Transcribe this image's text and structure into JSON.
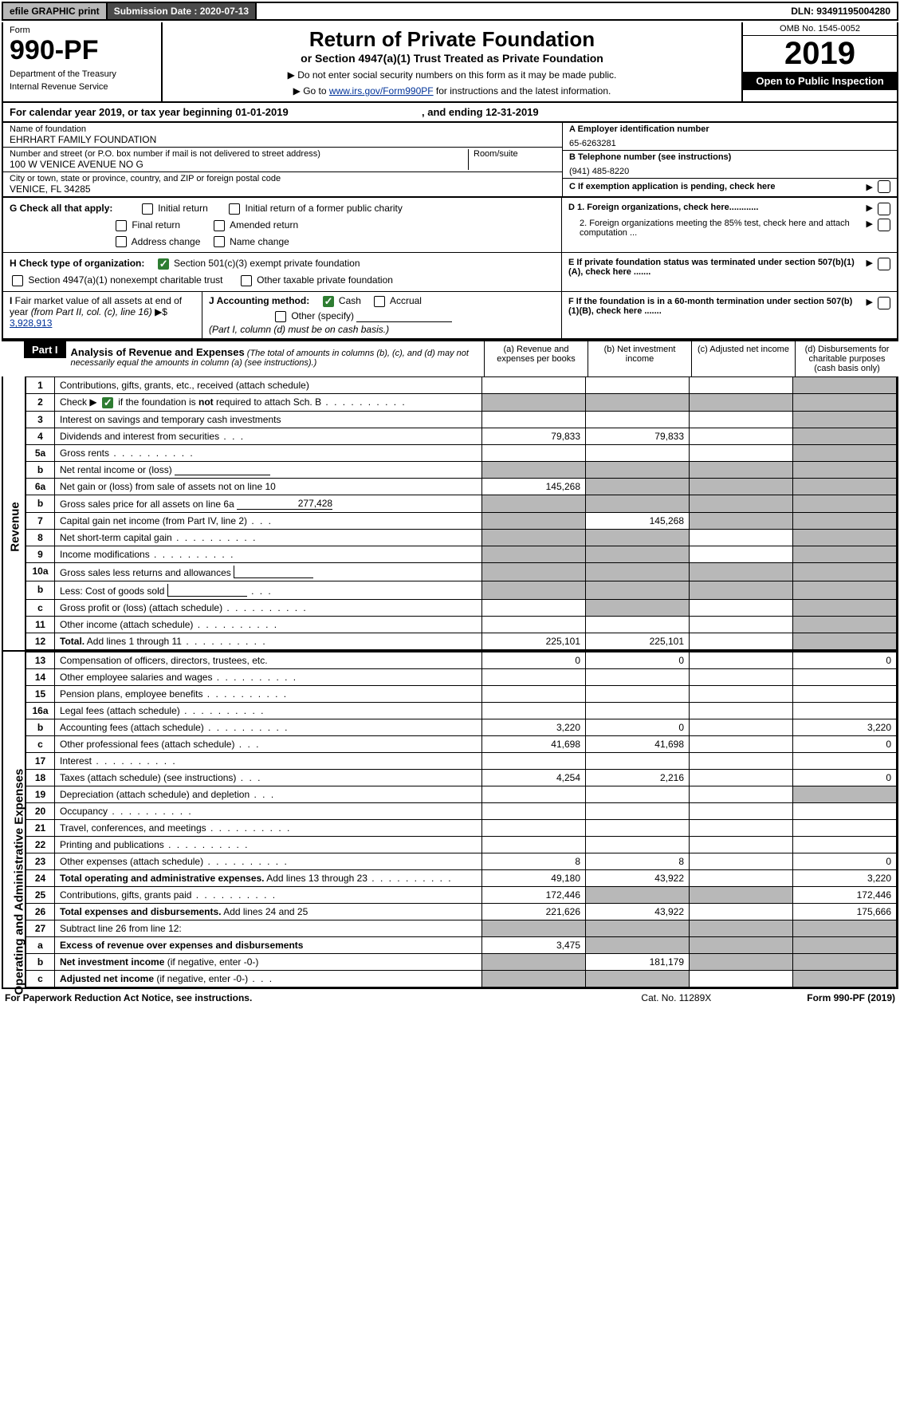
{
  "header_bar": {
    "efile": "efile GRAPHIC print",
    "submission_label": "Submission Date : 2020-07-13",
    "dln": "DLN: 93491195004280"
  },
  "form_header": {
    "form_label": "Form",
    "form_number": "990-PF",
    "dept": "Department of the Treasury",
    "irs": "Internal Revenue Service",
    "title": "Return of Private Foundation",
    "subtitle": "or Section 4947(a)(1) Trust Treated as Private Foundation",
    "instr1": "▶ Do not enter social security numbers on this form as it may be made public.",
    "instr2_pre": "▶ Go to ",
    "instr2_link": "www.irs.gov/Form990PF",
    "instr2_post": " for instructions and the latest information.",
    "omb": "OMB No. 1545-0052",
    "year": "2019",
    "open": "Open to Public Inspection"
  },
  "cal_year": {
    "text_pre": "For calendar year 2019, or tax year beginning 01-01-2019",
    "text_mid": ", and ending 12-31-2019"
  },
  "entity": {
    "name_label": "Name of foundation",
    "name": "EHRHART FAMILY FOUNDATION",
    "addr_label": "Number and street (or P.O. box number if mail is not delivered to street address)",
    "addr": "100 W VENICE AVENUE NO G",
    "room_label": "Room/suite",
    "city_label": "City or town, state or province, country, and ZIP or foreign postal code",
    "city": "VENICE, FL  34285",
    "a_label": "A Employer identification number",
    "a_val": "65-6263281",
    "b_label": "B Telephone number (see instructions)",
    "b_val": "(941) 485-8220",
    "c_label": "C If exemption application is pending, check here"
  },
  "g": {
    "label": "G Check all that apply:",
    "opts": [
      "Initial return",
      "Initial return of a former public charity",
      "Final return",
      "Amended return",
      "Address change",
      "Name change"
    ]
  },
  "h": {
    "label": "H Check type of organization:",
    "opt1": "Section 501(c)(3) exempt private foundation",
    "opt2": "Section 4947(a)(1) nonexempt charitable trust",
    "opt3": "Other taxable private foundation"
  },
  "d": {
    "d1": "D 1. Foreign organizations, check here............",
    "d2": "2. Foreign organizations meeting the 85% test, check here and attach computation ..."
  },
  "e": "E  If private foundation status was terminated under section 507(b)(1)(A), check here .......",
  "f": "F  If the foundation is in a 60-month termination under section 507(b)(1)(B), check here .......",
  "i": {
    "label": "I Fair market value of all assets at end of year (from Part II, col. (c), line 16) ▶$",
    "val": "3,928,913"
  },
  "j": {
    "label": "J Accounting method:",
    "cash": "Cash",
    "accrual": "Accrual",
    "other": "Other (specify)",
    "note": "(Part I, column (d) must be on cash basis.)"
  },
  "part1": {
    "header": "Part I",
    "title": "Analysis of Revenue and Expenses",
    "note": "(The total of amounts in columns (b), (c), and (d) may not necessarily equal the amounts in column (a) (see instructions).)",
    "col_a": "(a)    Revenue and expenses per books",
    "col_b": "(b)   Net investment income",
    "col_c": "(c)   Adjusted net income",
    "col_d": "(d)   Disbursements for charitable purposes (cash basis only)"
  },
  "side_labels": {
    "revenue": "Revenue",
    "expenses": "Operating and Administrative Expenses"
  },
  "rows": [
    {
      "n": "1",
      "desc": "Contributions, gifts, grants, etc., received (attach schedule)",
      "a": "",
      "b": "",
      "c": "",
      "d": "s"
    },
    {
      "n": "2",
      "desc": "Check ▶ [CB] if the foundation is <b>not</b> required to attach Sch. B",
      "dots": true,
      "a": "s",
      "b": "s",
      "c": "s",
      "d": "s"
    },
    {
      "n": "3",
      "desc": "Interest on savings and temporary cash investments",
      "a": "",
      "b": "",
      "c": "",
      "d": "s"
    },
    {
      "n": "4",
      "desc": "Dividends and interest from securities",
      "dots": "short",
      "a": "79,833",
      "b": "79,833",
      "c": "",
      "d": "s"
    },
    {
      "n": "5a",
      "desc": "Gross rents",
      "dots": true,
      "a": "",
      "b": "",
      "c": "",
      "d": "s"
    },
    {
      "n": "b",
      "desc": "Net rental income or (loss) [LINE]",
      "a": "s",
      "b": "s",
      "c": "s",
      "d": "s"
    },
    {
      "n": "6a",
      "desc": "Net gain or (loss) from sale of assets not on line 10",
      "a": "145,268",
      "b": "s",
      "c": "s",
      "d": "s"
    },
    {
      "n": "b",
      "desc": "Gross sales price for all assets on line 6a [LINE:277,428]",
      "a": "s",
      "b": "s",
      "c": "s",
      "d": "s"
    },
    {
      "n": "7",
      "desc": "Capital gain net income (from Part IV, line 2)",
      "dots": "short",
      "a": "s",
      "b": "145,268",
      "c": "s",
      "d": "s"
    },
    {
      "n": "8",
      "desc": "Net short-term capital gain",
      "dots": true,
      "a": "s",
      "b": "s",
      "c": "",
      "d": "s"
    },
    {
      "n": "9",
      "desc": "Income modifications",
      "dots": true,
      "a": "s",
      "b": "s",
      "c": "",
      "d": "s"
    },
    {
      "n": "10a",
      "desc": "Gross sales less returns and allowances [BOX]",
      "a": "s",
      "b": "s",
      "c": "s",
      "d": "s"
    },
    {
      "n": "b",
      "desc": "Less: Cost of goods sold",
      "dots": "short",
      "box": true,
      "a": "s",
      "b": "s",
      "c": "s",
      "d": "s"
    },
    {
      "n": "c",
      "desc": "Gross profit or (loss) (attach schedule)",
      "dots": true,
      "a": "",
      "b": "s",
      "c": "",
      "d": "s"
    },
    {
      "n": "11",
      "desc": "Other income (attach schedule)",
      "dots": true,
      "a": "",
      "b": "",
      "c": "",
      "d": "s"
    },
    {
      "n": "12",
      "desc": "<b>Total.</b> Add lines 1 through 11",
      "dots": true,
      "a": "225,101",
      "b": "225,101",
      "c": "",
      "d": "s"
    }
  ],
  "exp_rows": [
    {
      "n": "13",
      "desc": "Compensation of officers, directors, trustees, etc.",
      "a": "0",
      "b": "0",
      "c": "",
      "d": "0"
    },
    {
      "n": "14",
      "desc": "Other employee salaries and wages",
      "dots": true,
      "a": "",
      "b": "",
      "c": "",
      "d": ""
    },
    {
      "n": "15",
      "desc": "Pension plans, employee benefits",
      "dots": true,
      "a": "",
      "b": "",
      "c": "",
      "d": ""
    },
    {
      "n": "16a",
      "desc": "Legal fees (attach schedule)",
      "dots": true,
      "a": "",
      "b": "",
      "c": "",
      "d": ""
    },
    {
      "n": "b",
      "desc": "Accounting fees (attach schedule)",
      "dots": true,
      "a": "3,220",
      "b": "0",
      "c": "",
      "d": "3,220"
    },
    {
      "n": "c",
      "desc": "Other professional fees (attach schedule)",
      "dots": "short",
      "a": "41,698",
      "b": "41,698",
      "c": "",
      "d": "0"
    },
    {
      "n": "17",
      "desc": "Interest",
      "dots": true,
      "a": "",
      "b": "",
      "c": "",
      "d": ""
    },
    {
      "n": "18",
      "desc": "Taxes (attach schedule) (see instructions)",
      "dots": "short",
      "a": "4,254",
      "b": "2,216",
      "c": "",
      "d": "0"
    },
    {
      "n": "19",
      "desc": "Depreciation (attach schedule) and depletion",
      "dots": "short",
      "a": "",
      "b": "",
      "c": "",
      "d": "s"
    },
    {
      "n": "20",
      "desc": "Occupancy",
      "dots": true,
      "a": "",
      "b": "",
      "c": "",
      "d": ""
    },
    {
      "n": "21",
      "desc": "Travel, conferences, and meetings",
      "dots": true,
      "a": "",
      "b": "",
      "c": "",
      "d": ""
    },
    {
      "n": "22",
      "desc": "Printing and publications",
      "dots": true,
      "a": "",
      "b": "",
      "c": "",
      "d": ""
    },
    {
      "n": "23",
      "desc": "Other expenses (attach schedule)",
      "dots": true,
      "a": "8",
      "b": "8",
      "c": "",
      "d": "0"
    },
    {
      "n": "24",
      "desc": "<b>Total operating and administrative expenses.</b> Add lines 13 through 23",
      "dots": true,
      "a": "49,180",
      "b": "43,922",
      "c": "",
      "d": "3,220"
    },
    {
      "n": "25",
      "desc": "Contributions, gifts, grants paid",
      "dots": true,
      "a": "172,446",
      "b": "s",
      "c": "s",
      "d": "172,446"
    },
    {
      "n": "26",
      "desc": "<b>Total expenses and disbursements.</b> Add lines 24 and 25",
      "a": "221,626",
      "b": "43,922",
      "c": "",
      "d": "175,666"
    },
    {
      "n": "27",
      "desc": "Subtract line 26 from line 12:",
      "a": "s",
      "b": "s",
      "c": "s",
      "d": "s"
    },
    {
      "n": "a",
      "desc": "<b>Excess of revenue over expenses and disbursements</b>",
      "a": "3,475",
      "b": "s",
      "c": "s",
      "d": "s"
    },
    {
      "n": "b",
      "desc": "<b>Net investment income</b> (if negative, enter -0-)",
      "a": "s",
      "b": "181,179",
      "c": "s",
      "d": "s"
    },
    {
      "n": "c",
      "desc": "<b>Adjusted net income</b> (if negative, enter -0-)",
      "dots": "short",
      "a": "s",
      "b": "s",
      "c": "",
      "d": "s"
    }
  ],
  "footer": {
    "left": "For Paperwork Reduction Act Notice, see instructions.",
    "mid": "Cat. No. 11289X",
    "right": "Form 990-PF (2019)"
  },
  "colors": {
    "shaded": "#b8b8b8",
    "black": "#000000",
    "link": "#003399",
    "check_green": "#2e7d32"
  }
}
